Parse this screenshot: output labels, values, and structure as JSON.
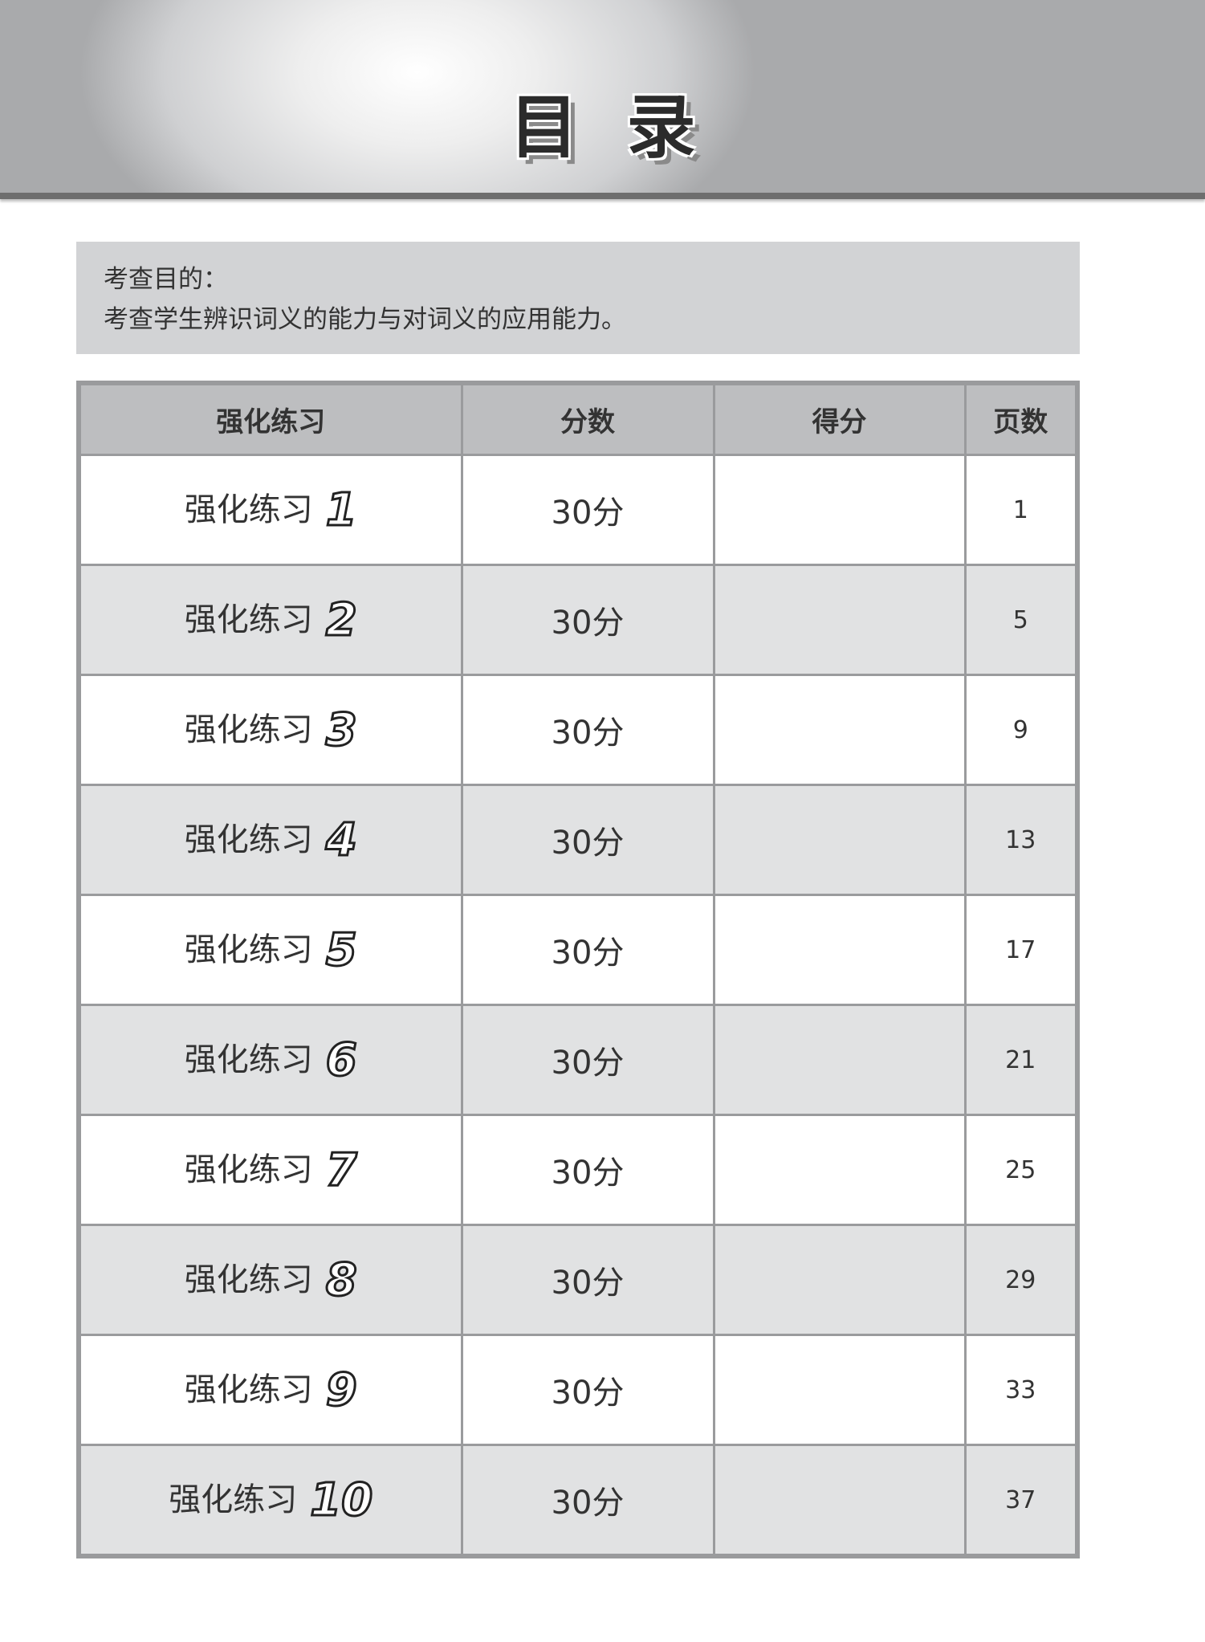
{
  "header": {
    "title": "目录"
  },
  "purpose": {
    "label": "考查目的：",
    "text": "考查学生辨识词义的能力与对词义的应用能力。"
  },
  "table": {
    "headers": [
      "强化练习",
      "分数",
      "得分",
      "页数"
    ],
    "rows": [
      {
        "name": "强化练习",
        "num": "1",
        "score": "30分",
        "earned": "",
        "page": "1"
      },
      {
        "name": "强化练习",
        "num": "2",
        "score": "30分",
        "earned": "",
        "page": "5"
      },
      {
        "name": "强化练习",
        "num": "3",
        "score": "30分",
        "earned": "",
        "page": "9"
      },
      {
        "name": "强化练习",
        "num": "4",
        "score": "30分",
        "earned": "",
        "page": "13"
      },
      {
        "name": "强化练习",
        "num": "5",
        "score": "30分",
        "earned": "",
        "page": "17"
      },
      {
        "name": "强化练习",
        "num": "6",
        "score": "30分",
        "earned": "",
        "page": "21"
      },
      {
        "name": "强化练习",
        "num": "7",
        "score": "30分",
        "earned": "",
        "page": "25"
      },
      {
        "name": "强化练习",
        "num": "8",
        "score": "30分",
        "earned": "",
        "page": "29"
      },
      {
        "name": "强化练习",
        "num": "9",
        "score": "30分",
        "earned": "",
        "page": "33"
      },
      {
        "name": "强化练习",
        "num": "10",
        "score": "30分",
        "earned": "",
        "page": "37"
      }
    ]
  }
}
